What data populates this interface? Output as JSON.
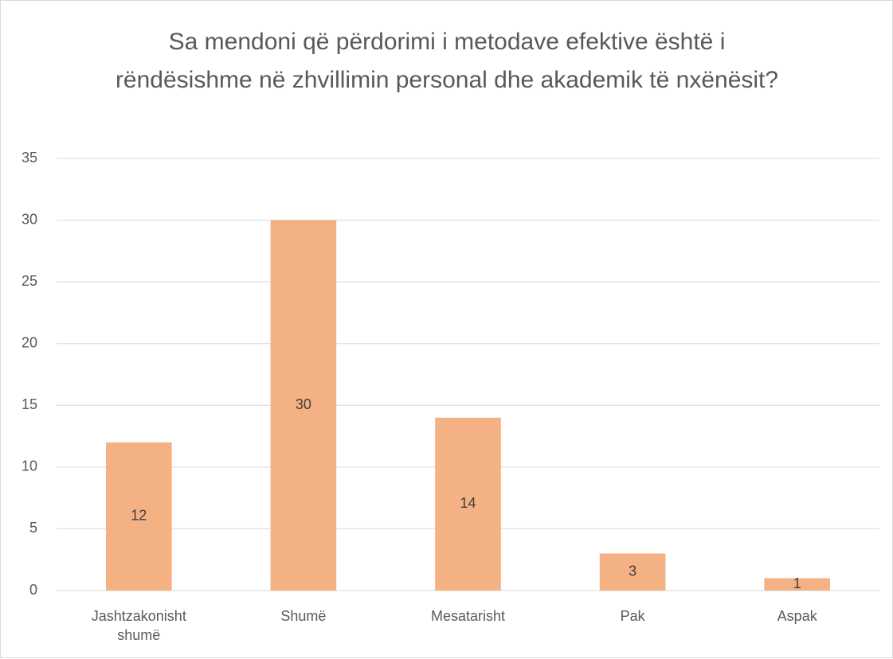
{
  "chart_data": {
    "type": "bar",
    "title": "Sa mendoni që përdorimi i metodave efektive është i rëndësishme në zhvillimin personal dhe akademik të nxënësit?",
    "categories": [
      "Jashtzakonisht shumë",
      "Shumë",
      "Mesatarisht",
      "Pak",
      "Aspak"
    ],
    "values": [
      12,
      30,
      14,
      3,
      1
    ],
    "color": "#f4b183",
    "ylim": [
      0,
      35
    ],
    "yticks": [
      0,
      5,
      10,
      15,
      20,
      25,
      30,
      35
    ],
    "grid": true,
    "data_labels": true
  }
}
